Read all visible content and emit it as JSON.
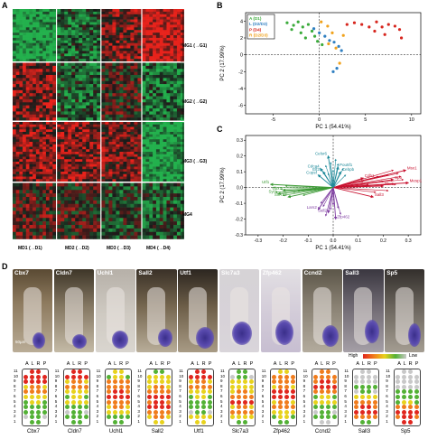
{
  "panels": {
    "A": "A",
    "B": "B",
    "C": "C",
    "D": "D"
  },
  "panel_a": {
    "modules": [
      {
        "label": "MG1 (→G1)"
      },
      {
        "label": "MG2 (→G2)"
      },
      {
        "label": "MG3 (→G3)"
      },
      {
        "label": "MG4"
      }
    ],
    "columns": [
      {
        "label": "MD1 (→D1)"
      },
      {
        "label": "MD2 (→D2)"
      },
      {
        "label": "MD3 (→D3)"
      },
      {
        "label": "MD4 (→D4)"
      }
    ],
    "colors": {
      "high": "#e8221b",
      "low": "#23b14d",
      "mid": "#1a1a1a"
    }
  },
  "panel_b": {
    "chart_data": {
      "type": "scatter",
      "xlabel": "PC 1 (54.41%)",
      "ylabel": "PC 2 (17.99%)",
      "xticks": [
        "-5",
        "0",
        "5",
        "10"
      ],
      "yticks": [
        "-6",
        "-4",
        "-2",
        "0",
        "2",
        "4"
      ],
      "xlim": [
        -8,
        11
      ],
      "ylim": [
        -7,
        5
      ],
      "legend": [
        {
          "label": "A (D1)",
          "color": "#3bab3b"
        },
        {
          "label": "L (D2/D3)",
          "color": "#2f7fc1"
        },
        {
          "label": "P (D4)",
          "color": "#d7261e"
        },
        {
          "label": "R (D2/D3)",
          "color": "#f0a21c"
        }
      ],
      "series": [
        {
          "name": "A (D1)",
          "color": "#3bab3b",
          "points": [
            [
              -3.5,
              3.8
            ],
            [
              -2.8,
              3.5
            ],
            [
              -2.3,
              3.9
            ],
            [
              -1.8,
              3.3
            ],
            [
              -1.2,
              3.6
            ],
            [
              -3.0,
              3.0
            ],
            [
              -2.0,
              2.6
            ],
            [
              -0.8,
              2.8
            ],
            [
              -0.5,
              2.2
            ],
            [
              -1.5,
              2.0
            ],
            [
              -0.2,
              1.6
            ],
            [
              0.3,
              1.2
            ]
          ]
        },
        {
          "name": "L (D2/D3)",
          "color": "#2f7fc1",
          "points": [
            [
              -0.6,
              3.1
            ],
            [
              0.0,
              2.6
            ],
            [
              0.6,
              2.2
            ],
            [
              1.1,
              1.7
            ],
            [
              1.6,
              1.5
            ],
            [
              2.1,
              1.0
            ],
            [
              2.4,
              0.5
            ],
            [
              1.9,
              -1.6
            ],
            [
              1.5,
              -2.0
            ]
          ]
        },
        {
          "name": "P (D4)",
          "color": "#d7261e",
          "points": [
            [
              3.0,
              3.6
            ],
            [
              3.8,
              3.8
            ],
            [
              4.6,
              3.6
            ],
            [
              5.4,
              3.3
            ],
            [
              6.2,
              3.9
            ],
            [
              6.8,
              3.3
            ],
            [
              7.5,
              3.6
            ],
            [
              8.2,
              3.4
            ],
            [
              8.7,
              3.0
            ],
            [
              7.1,
              2.4
            ],
            [
              6.0,
              2.8
            ],
            [
              8.9,
              2.0
            ]
          ]
        },
        {
          "name": "R (D2/D3)",
          "color": "#f0a21c",
          "points": [
            [
              0.2,
              3.9
            ],
            [
              0.9,
              3.4
            ],
            [
              1.4,
              2.6
            ],
            [
              2.6,
              2.3
            ],
            [
              1.0,
              1.3
            ],
            [
              1.8,
              0.8
            ],
            [
              2.2,
              -1.0
            ]
          ]
        }
      ]
    }
  },
  "panel_c": {
    "chart_data": {
      "type": "biplot",
      "xlabel": "PC 1 (54.41%)",
      "ylabel": "PC 2 (17.99%)",
      "xticks": [
        "-0.3",
        "-0.2",
        "-0.1",
        "0.0",
        "0.1",
        "0.2",
        "0.3"
      ],
      "yticks": [
        "-0.3",
        "-0.2",
        "-0.1",
        "0.0",
        "0.1",
        "0.2",
        "0.3"
      ],
      "xlim": [
        -0.35,
        0.35
      ],
      "ylim": [
        -0.3,
        0.33
      ],
      "groups": [
        {
          "name": "red",
          "color": "#c8102e",
          "genes": [
            {
              "label": "Msx1",
              "x": 0.29,
              "y": 0.11
            },
            {
              "label": "Sp5",
              "x": 0.24,
              "y": 0.05
            },
            {
              "label": "Mesp1",
              "x": 0.3,
              "y": 0.03
            },
            {
              "label": "Cdh1",
              "x": 0.12,
              "y": 0.06
            },
            {
              "label": "Sall3",
              "x": 0.16,
              "y": -0.06
            },
            {
              "label": "Tbx6",
              "x": 0.2,
              "y": 0.01
            }
          ]
        },
        {
          "name": "teal",
          "color": "#1f8a9a",
          "genes": [
            {
              "label": "Cdca4",
              "x": -0.05,
              "y": 0.12
            },
            {
              "label": "Elf2b",
              "x": -0.04,
              "y": 0.1
            },
            {
              "label": "Copsf",
              "x": -0.06,
              "y": 0.08
            },
            {
              "label": "Pou5f1",
              "x": 0.02,
              "y": 0.13
            },
            {
              "label": "Cebpb",
              "x": 0.03,
              "y": 0.1
            },
            {
              "label": "Celsr6",
              "x": -0.02,
              "y": 0.2
            }
          ]
        },
        {
          "name": "green",
          "color": "#3c9a35",
          "genes": [
            {
              "label": "Utf1",
              "x": -0.25,
              "y": 0.02
            },
            {
              "label": "Cbx7",
              "x": -0.2,
              "y": -0.02
            },
            {
              "label": "Syt1",
              "x": -0.22,
              "y": -0.04
            },
            {
              "label": "Slc7a3",
              "x": -0.18,
              "y": -0.06
            }
          ]
        },
        {
          "name": "purple",
          "color": "#7d3ca0",
          "genes": [
            {
              "label": "Lars2",
              "x": -0.06,
              "y": -0.14
            },
            {
              "label": "Sall2",
              "x": -0.02,
              "y": -0.16
            },
            {
              "label": "Zfp462",
              "x": 0.01,
              "y": -0.2
            }
          ]
        }
      ]
    }
  },
  "panel_d": {
    "genes": [
      "Cbx7",
      "Cldn7",
      "Uchl1",
      "Sall2",
      "Utf1",
      "Slc7a3",
      "Zfp462",
      "Ccnd2",
      "Sall3",
      "Sp5"
    ],
    "schematic_header": "A L R P",
    "row_numbers": [
      "11",
      "10",
      "9",
      "8",
      "7",
      "6",
      "5",
      "4",
      "3",
      "2",
      "1"
    ],
    "legend": {
      "high": "High",
      "low": "Low"
    },
    "scale_bar": "50µm",
    "colors": {
      "red": "#e0261e",
      "orange": "#f07c1c",
      "yellow": "#e8d21c",
      "green": "#53b135",
      "grey": "#c8c8c8"
    }
  }
}
